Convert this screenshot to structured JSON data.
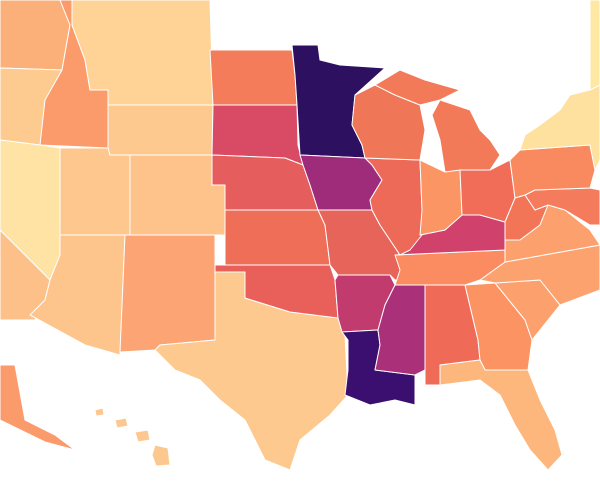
{
  "map": {
    "regions": [
      {
        "color": "#fbb07a"
      },
      {
        "color": "#fdcb8f"
      },
      {
        "color": "#fb9a6a"
      },
      {
        "color": "#fed395"
      },
      {
        "color": "#fdc98e"
      },
      {
        "color": "#fee3a5"
      },
      {
        "color": "#fdc78d"
      },
      {
        "color": "#fdc088"
      },
      {
        "color": "#fdc38b"
      },
      {
        "color": "#fdc58c"
      },
      {
        "color": "#fca474"
      },
      {
        "color": "#fdc98e"
      },
      {
        "color": "#f47c5a"
      },
      {
        "color": "#d94a64"
      },
      {
        "color": "#e55d5c"
      },
      {
        "color": "#ee6e58"
      },
      {
        "color": "#e95f5a"
      },
      {
        "color": "#2d1160"
      },
      {
        "color": "#9e2c7a"
      },
      {
        "color": "#e66459"
      },
      {
        "color": "#c23b6f"
      },
      {
        "color": "#3b0f6f"
      },
      {
        "color": "#ab307a"
      },
      {
        "color": "#ef6b58"
      },
      {
        "color": "#fb9363"
      },
      {
        "color": "#fdb67c"
      },
      {
        "color": "#fca06d"
      },
      {
        "color": "#fca26f"
      },
      {
        "color": "#fb8c61"
      },
      {
        "color": "#d0416b"
      },
      {
        "color": "#ed6a59"
      },
      {
        "color": "#f07658"
      },
      {
        "color": "#f37a58"
      },
      {
        "color": "#f37a58"
      },
      {
        "color": "#fb9563"
      },
      {
        "color": "#f16d58"
      },
      {
        "color": "#f27557"
      },
      {
        "color": "#fca16d"
      },
      {
        "color": "#f47b5c"
      },
      {
        "color": "#f98a60"
      },
      {
        "color": "#fee09f"
      },
      {
        "color": "#fee8a4"
      },
      {
        "color": "#fb9a6a"
      },
      {
        "color": "#fdc890"
      },
      {
        "color": "#fdc890"
      },
      {
        "color": "#fdc890"
      },
      {
        "color": "#fdc890"
      }
    ]
  }
}
